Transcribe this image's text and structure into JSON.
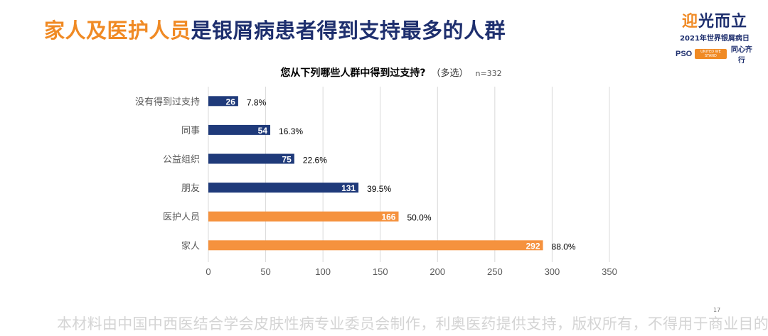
{
  "slide": {
    "title_highlight": "家人及医护人员",
    "title_rest": "是银屑病患者得到支持最多的人群",
    "footer": "本材料由中国中西医结合学会皮肤性病专业委员会制作，利奥医药提供支持，版权所有，不得用于商业目的",
    "page_number": "17"
  },
  "logo": {
    "main_a": "迎",
    "main_b": "光而立",
    "year_line": "2021年世界银屑病日",
    "pso": "PSO",
    "badge": "UNITED WE STAND",
    "slogan": "同心齐行"
  },
  "chart_header": {
    "question": "您从下列哪些人群中得到过支持?",
    "multi_select": "（多选）",
    "sample_size": "n=332"
  },
  "colors": {
    "navy": "#1f3a7a",
    "orange": "#f5923e",
    "grid": "#d9d9d9",
    "axis_text": "#595959"
  },
  "chart_data": {
    "type": "bar",
    "orientation": "horizontal",
    "title": "您从下列哪些人群中得到过支持?",
    "xlim": [
      0,
      350
    ],
    "xticks": [
      0,
      50,
      100,
      150,
      200,
      250,
      300,
      350
    ],
    "grid": "vertical",
    "categories": [
      "没有得到过支持",
      "同事",
      "公益组织",
      "朋友",
      "医护人员",
      "家人"
    ],
    "values": [
      26,
      54,
      75,
      131,
      166,
      292
    ],
    "percent_labels": [
      "7.8%",
      "16.3%",
      "22.6%",
      "39.5%",
      "50.0%",
      "88.0%"
    ],
    "bar_colors": [
      "#1f3a7a",
      "#1f3a7a",
      "#1f3a7a",
      "#1f3a7a",
      "#f5923e",
      "#f5923e"
    ]
  }
}
